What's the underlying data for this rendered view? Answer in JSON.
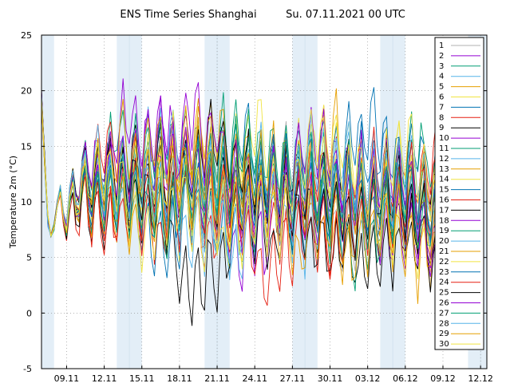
{
  "chart_data": {
    "type": "line",
    "title": "ENS Time Series Shanghai",
    "subtitle": "Su. 07.11.2021 00 UTC",
    "ylabel": "Temperature 2m (°C)",
    "xlabel": "",
    "ylim": [
      -5,
      25
    ],
    "y_ticks": [
      "-5",
      "0",
      "5",
      "10",
      "15",
      "20",
      "25"
    ],
    "x_range": [
      "2021-11-07",
      "2021-12-12"
    ],
    "x_ticks": [
      {
        "label": "09.11",
        "date": "2021-11-09"
      },
      {
        "label": "12.11",
        "date": "2021-11-12"
      },
      {
        "label": "15.11",
        "date": "2021-11-15"
      },
      {
        "label": "18.11",
        "date": "2021-11-18"
      },
      {
        "label": "21.11",
        "date": "2021-11-21"
      },
      {
        "label": "24.11",
        "date": "2021-11-24"
      },
      {
        "label": "27.11",
        "date": "2021-11-27"
      },
      {
        "label": "30.11",
        "date": "2021-11-30"
      },
      {
        "label": "03.12",
        "date": "2021-12-03"
      },
      {
        "label": "06.12",
        "date": "2021-12-06"
      },
      {
        "label": "09.12",
        "date": "2021-12-09"
      },
      {
        "label": "12.12",
        "date": "2021-12-12"
      }
    ],
    "grid": true,
    "legend_position": "top-right",
    "weekend_bands": [
      [
        "2021-11-06",
        "2021-11-08"
      ],
      [
        "2021-11-13",
        "2021-11-15"
      ],
      [
        "2021-11-20",
        "2021-11-22"
      ],
      [
        "2021-11-27",
        "2021-11-29"
      ],
      [
        "2021-12-04",
        "2021-12-06"
      ],
      [
        "2021-12-11",
        "2021-12-13"
      ]
    ],
    "band_color": "#e3eef7",
    "time_step_hours": 6,
    "series_start": "2021-11-07T00:00",
    "series_points": 141,
    "series": [
      {
        "name": "1",
        "color": "#b0b0b0"
      },
      {
        "name": "2",
        "color": "#9400d3"
      },
      {
        "name": "3",
        "color": "#009e73"
      },
      {
        "name": "4",
        "color": "#56b4e9"
      },
      {
        "name": "5",
        "color": "#e69f00"
      },
      {
        "name": "6",
        "color": "#f0e442"
      },
      {
        "name": "7",
        "color": "#0072b2"
      },
      {
        "name": "8",
        "color": "#e51e10"
      },
      {
        "name": "9",
        "color": "#000000"
      },
      {
        "name": "10",
        "color": "#9400d3"
      },
      {
        "name": "11",
        "color": "#009e73"
      },
      {
        "name": "12",
        "color": "#56b4e9"
      },
      {
        "name": "13",
        "color": "#e69f00"
      },
      {
        "name": "14",
        "color": "#f0e442"
      },
      {
        "name": "15",
        "color": "#0072b2"
      },
      {
        "name": "16",
        "color": "#e51e10"
      },
      {
        "name": "17",
        "color": "#000000"
      },
      {
        "name": "18",
        "color": "#9400d3"
      },
      {
        "name": "19",
        "color": "#009e73"
      },
      {
        "name": "20",
        "color": "#56b4e9"
      },
      {
        "name": "21",
        "color": "#e69f00"
      },
      {
        "name": "22",
        "color": "#f0e442"
      },
      {
        "name": "23",
        "color": "#0072b2"
      },
      {
        "name": "24",
        "color": "#e51e10"
      },
      {
        "name": "25",
        "color": "#000000"
      },
      {
        "name": "26",
        "color": "#9400d3"
      },
      {
        "name": "27",
        "color": "#009e73"
      },
      {
        "name": "28",
        "color": "#56b4e9"
      },
      {
        "name": "29",
        "color": "#e69f00"
      },
      {
        "name": "30",
        "color": "#f0e442"
      }
    ]
  }
}
